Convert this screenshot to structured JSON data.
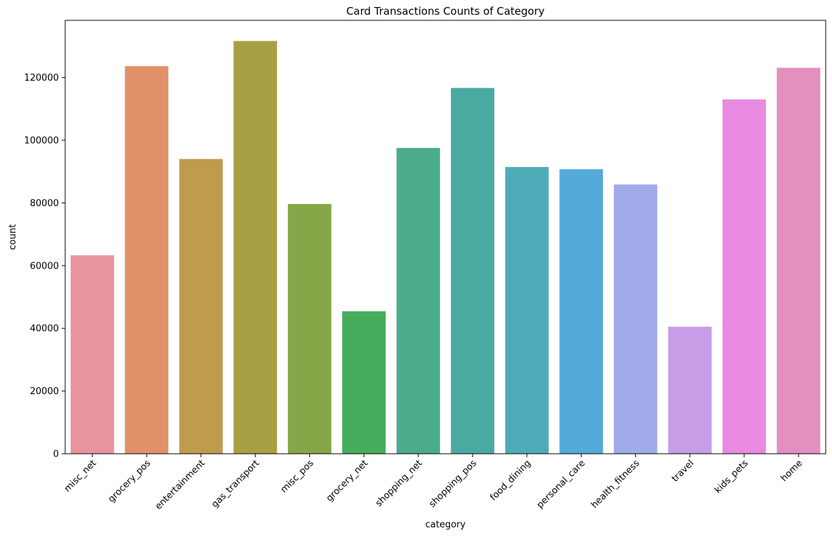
{
  "chart_data": {
    "type": "bar",
    "title": "Card Transactions Counts of Category",
    "xlabel": "category",
    "ylabel": "count",
    "categories": [
      "misc_net",
      "grocery_pos",
      "entertainment",
      "gas_transport",
      "misc_pos",
      "grocery_net",
      "shopping_net",
      "shopping_pos",
      "food_dining",
      "personal_care",
      "health_fitness",
      "travel",
      "kids_pets",
      "home"
    ],
    "values": [
      63287,
      123638,
      94014,
      131659,
      79655,
      45452,
      97543,
      116672,
      91461,
      90758,
      85879,
      40507,
      113035,
      123115
    ],
    "colors": [
      "#e8949f",
      "#e1916a",
      "#c09b4d",
      "#a6a043",
      "#87a647",
      "#47ad5c",
      "#4bac8c",
      "#4aaaa2",
      "#4eabb8",
      "#54aad8",
      "#a1abe9",
      "#c79de8",
      "#e78ae0",
      "#e48fc0"
    ],
    "ylim": [
      0,
      138244
    ],
    "yticks": [
      0,
      20000,
      40000,
      60000,
      80000,
      100000,
      120000
    ],
    "grid": false,
    "legend": "none"
  }
}
